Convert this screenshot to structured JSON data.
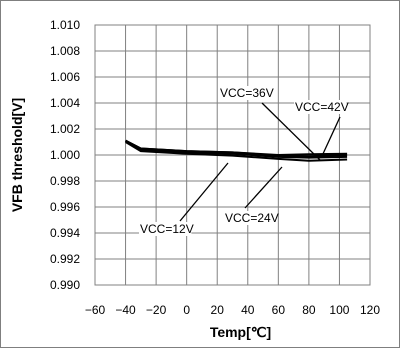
{
  "chart_data": {
    "type": "line",
    "title": "",
    "xlabel": "Temp[℃]",
    "ylabel": "VFB threshold[V]",
    "xlim": [
      -60,
      120
    ],
    "ylim": [
      0.99,
      1.01
    ],
    "x_ticks": [
      "−60",
      "−40",
      "−20",
      "0",
      "20",
      "40",
      "60",
      "80",
      "100",
      "120"
    ],
    "y_ticks": [
      "1.010",
      "1.008",
      "1.006",
      "1.004",
      "1.002",
      "1.000",
      "0.998",
      "0.996",
      "0.994",
      "0.992",
      "0.990"
    ],
    "grid": true,
    "legend": "none",
    "series": [
      {
        "name": "VCC=12V",
        "x": [
          -40,
          -30,
          0,
          30,
          60,
          80,
          105
        ],
        "y": [
          1.001,
          1.0003,
          1.0001,
          0.99995,
          0.9997,
          0.99955,
          0.99965
        ]
      },
      {
        "name": "VCC=24V",
        "x": [
          -40,
          -30,
          0,
          30,
          60,
          80,
          105
        ],
        "y": [
          1.0011,
          1.0004,
          1.0002,
          1.0001,
          0.99985,
          0.9998,
          0.99985
        ]
      },
      {
        "name": "VCC=36V",
        "x": [
          -40,
          -30,
          0,
          30,
          60,
          80,
          105
        ],
        "y": [
          1.0011,
          1.0005,
          1.0003,
          1.0002,
          0.99995,
          0.9999,
          1.0
        ]
      },
      {
        "name": "VCC=42V",
        "x": [
          -40,
          -30,
          0,
          30,
          60,
          80,
          105
        ],
        "y": [
          1.0011,
          1.0005,
          1.0003,
          1.0002,
          1.0,
          1.00005,
          1.0001
        ]
      }
    ],
    "annotations": [
      {
        "text": "VCC=36V",
        "series": "VCC=36V"
      },
      {
        "text": "VCC=42V",
        "series": "VCC=42V"
      },
      {
        "text": "VCC=12V",
        "series": "VCC=12V"
      },
      {
        "text": "VCC=24V",
        "series": "VCC=24V"
      }
    ]
  }
}
